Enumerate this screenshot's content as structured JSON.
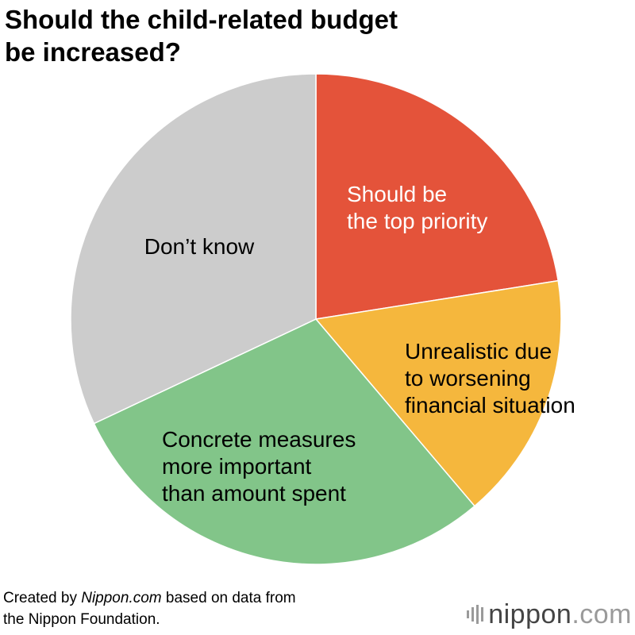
{
  "chart_data": {
    "type": "pie",
    "title": "Should the child-related budget be increased?",
    "title_lines": [
      "Should the child-related budget",
      "be increased?"
    ],
    "start_angle_deg": 0,
    "direction": "clockwise",
    "series": [
      {
        "name": "Should be the top priority",
        "label_lines": [
          "Should be",
          "the top priority"
        ],
        "value": 22.5,
        "color": "#e4533a",
        "label_color": "#ffffff"
      },
      {
        "name": "Unrealistic due to worsening financial situation",
        "label_lines": [
          "Unrealistic due",
          "to worsening",
          "financial situation"
        ],
        "value": 16.3,
        "color": "#f5b73d",
        "label_color": "#000000"
      },
      {
        "name": "Concrete measures more important than amount spent",
        "label_lines": [
          "Concrete measures",
          "more important",
          "than amount spent"
        ],
        "value": 29.2,
        "color": "#82c589",
        "label_color": "#000000"
      },
      {
        "name": "Don’t know",
        "label_lines": [
          "Don’t know"
        ],
        "value": 32.0,
        "color": "#cccccc",
        "label_color": "#000000"
      }
    ]
  },
  "footnote": {
    "prefix": "Created by ",
    "source_name": "Nippon.com",
    "suffix": " based on data from",
    "line2": "the Nippon Foundation."
  },
  "logo": {
    "name": "nippon",
    "tld": ".com"
  }
}
